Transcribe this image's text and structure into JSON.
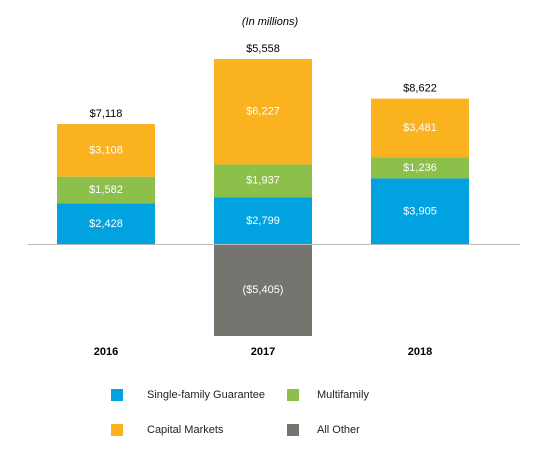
{
  "chart_data": {
    "type": "stacked-bar",
    "subtitle": "(In millions)",
    "categories": [
      "2016",
      "2017",
      "2018"
    ],
    "series": [
      {
        "name": "Single-family Guarantee",
        "color": "#00a3e0",
        "values": [
          2428,
          2799,
          3905
        ],
        "value_labels": [
          "$2,428",
          "$2,799",
          "$3,905"
        ]
      },
      {
        "name": "Multifamily",
        "color": "#8cc04b",
        "values": [
          1582,
          1937,
          1236
        ],
        "value_labels": [
          "$1,582",
          "$1,937",
          "$1,236"
        ]
      },
      {
        "name": "Capital Markets",
        "color": "#fbb21f",
        "values": [
          3108,
          6227,
          3481
        ],
        "value_labels": [
          "$3,108",
          "$6,227",
          "$3,481"
        ]
      },
      {
        "name": "All Other",
        "color": "#75746e",
        "values": [
          null,
          -5405,
          null
        ],
        "value_labels": [
          null,
          "($5,405)",
          null
        ]
      }
    ],
    "totals": [
      7118,
      5558,
      8622
    ],
    "total_labels": [
      "$7,118",
      "$5,558",
      "$8,622"
    ]
  }
}
